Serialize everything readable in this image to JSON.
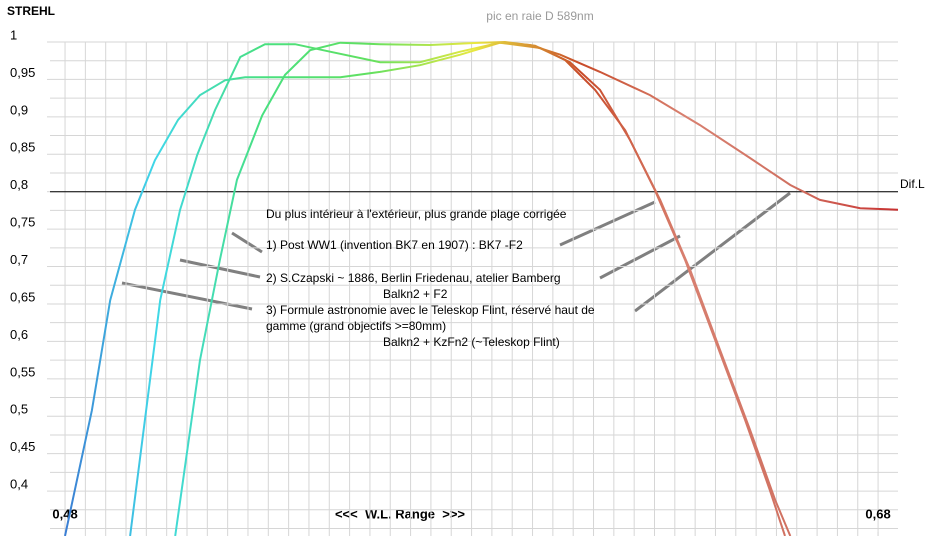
{
  "chart_data": {
    "type": "line",
    "title": "pic en raie D 589nm",
    "ylabel": "STREHL",
    "xlabel": "<<<  W.L. Range  >>>",
    "xlim": [
      0.4763,
      0.6849
    ],
    "ylim": [
      0.34,
      1.0
    ],
    "xticks": [
      {
        "value": 0.48,
        "label": "0,48"
      },
      {
        "value": 0.68,
        "label": "0,68"
      }
    ],
    "yticks": [
      1,
      {
        "value": 0.95,
        "label": "0,95"
      },
      {
        "value": 0.9,
        "label": "0,9"
      },
      {
        "value": 0.85,
        "label": "0,85"
      },
      {
        "value": 0.8,
        "label": "0,8"
      },
      {
        "value": 0.75,
        "label": "0,75"
      },
      {
        "value": 0.7,
        "label": "0,7"
      },
      {
        "value": 0.65,
        "label": "0,65"
      },
      {
        "value": 0.6,
        "label": "0,6"
      },
      {
        "value": 0.55,
        "label": "0,55"
      },
      {
        "value": 0.5,
        "label": "0,5"
      },
      {
        "value": 0.45,
        "label": "0,45"
      },
      {
        "value": 0.4,
        "label": "0,4"
      }
    ],
    "xgrid": [
      0.48,
      0.485,
      0.49,
      0.495,
      0.5,
      0.505,
      0.51,
      0.515,
      0.52,
      0.525,
      0.53,
      0.535,
      0.54,
      0.545,
      0.55,
      0.555,
      0.56,
      0.565,
      0.57,
      0.575,
      0.58,
      0.585,
      0.59,
      0.595,
      0.6,
      0.605,
      0.61,
      0.615,
      0.62,
      0.625,
      0.63,
      0.635,
      0.64,
      0.645,
      0.65,
      0.655,
      0.66,
      0.665,
      0.67,
      0.675,
      0.68
    ],
    "ygrid": [
      0.35,
      0.375,
      0.4,
      0.425,
      0.45,
      0.475,
      0.5,
      0.525,
      0.55,
      0.575,
      0.6,
      0.625,
      0.65,
      0.675,
      0.7,
      0.725,
      0.75,
      0.775,
      0.8,
      0.825,
      0.85,
      0.875,
      0.9,
      0.925,
      0.95,
      0.975,
      1.0
    ],
    "grid": true,
    "gradient_colors": [
      "#3a6fd0",
      "#40d8e8",
      "#48e080",
      "#60e060",
      "#e8e840",
      "#c84a28",
      "#d88070",
      "#d07060",
      "#c83030"
    ],
    "reference_line": {
      "value": 0.8,
      "label": "Dif.L"
    },
    "annotations": [
      "Du plus intérieur à l'extérieur, plus grande plage corrigée",
      "1) Post WW1 (invention BK7 en 1907) : BK7 -F2",
      "2) S.Czapski ~ 1886, Berlin Friedenau, atelier Bamberg",
      "Balkn2 + F2",
      "3) Formule astronomie avec le Teleskop Flint, réservé haut de",
      "gamme (grand objectifs >=80mm)",
      "Balkn2 + KzFn2 (~Teleskop Flint)"
    ],
    "series": [
      {
        "x": [
          0.5071,
          0.5132,
          0.5181,
          0.5223,
          0.5285,
          0.5341,
          0.5403,
          0.5477,
          0.5575,
          0.5698,
          0.5821,
          0.5882,
          0.5956,
          0.603,
          0.6104,
          0.6178,
          0.6251,
          0.6325,
          0.6399,
          0.6473,
          0.6534,
          0.6571
        ],
        "values": [
          0.34,
          0.575,
          0.709,
          0.816,
          0.902,
          0.956,
          0.989,
          0.999,
          0.997,
          0.996,
          0.999,
          1.0,
          0.995,
          0.976,
          0.936,
          0.882,
          0.802,
          0.709,
          0.602,
          0.495,
          0.401,
          0.34
        ]
      },
      {
        "x": [
          0.496,
          0.5034,
          0.5083,
          0.5125,
          0.5169,
          0.5231,
          0.5292,
          0.5366,
          0.5452,
          0.5575,
          0.5673,
          0.5772,
          0.587,
          0.5969,
          0.6042,
          0.6116,
          0.619,
          0.6264,
          0.6338,
          0.6411,
          0.6485,
          0.6547,
          0.6584
        ],
        "values": [
          0.34,
          0.655,
          0.776,
          0.849,
          0.909,
          0.98,
          0.997,
          0.997,
          0.987,
          0.973,
          0.973,
          0.987,
          0.999,
          0.992,
          0.973,
          0.936,
          0.869,
          0.789,
          0.695,
          0.589,
          0.482,
          0.388,
          0.34
        ]
      },
      {
        "x": [
          0.48,
          0.4866,
          0.4911,
          0.4972,
          0.5021,
          0.5078,
          0.5132,
          0.5194,
          0.5243,
          0.5477,
          0.5575,
          0.5673,
          0.5772,
          0.587,
          0.5944,
          0.6018,
          0.6116,
          0.6239,
          0.6362,
          0.6485,
          0.6584,
          0.6657,
          0.6756,
          0.6849
        ],
        "values": [
          0.34,
          0.508,
          0.655,
          0.776,
          0.842,
          0.896,
          0.929,
          0.949,
          0.953,
          0.953,
          0.96,
          0.969,
          0.983,
          0.999,
          0.996,
          0.983,
          0.96,
          0.929,
          0.889,
          0.845,
          0.809,
          0.789,
          0.778,
          0.776
        ]
      }
    ]
  }
}
